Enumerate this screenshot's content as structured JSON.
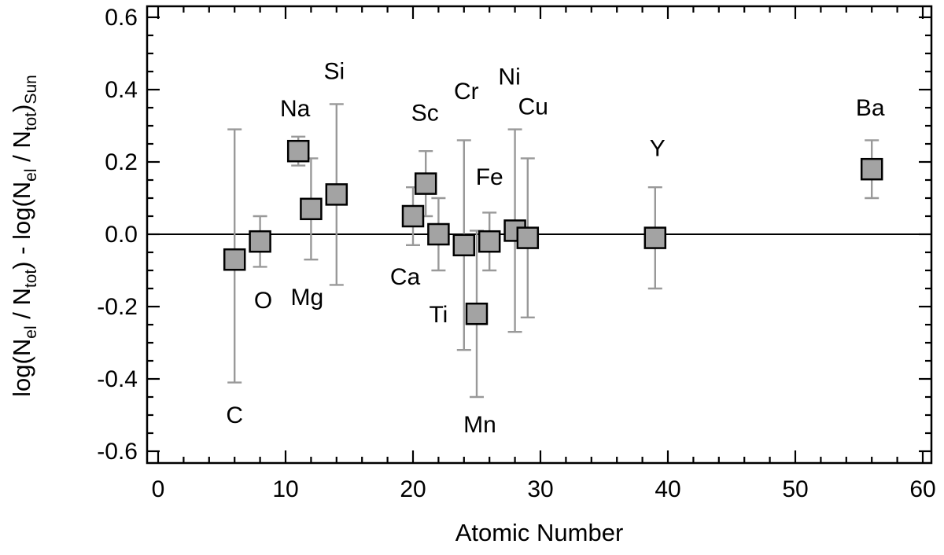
{
  "chart_data": {
    "type": "scatter",
    "title": "",
    "xlabel": "Atomic Number",
    "ylabel_plain": "log(N_el / N_tot) - log(N_el / N_tot)_Sun",
    "ylabel_parts": [
      {
        "t": "log(N"
      },
      {
        "t": "el",
        "sub": true
      },
      {
        "t": " / N"
      },
      {
        "t": "tot",
        "sub": true
      },
      {
        "t": ") - log(N"
      },
      {
        "t": "el",
        "sub": true
      },
      {
        "t": " / N"
      },
      {
        "t": "tot",
        "sub": true
      },
      {
        "t": ")"
      },
      {
        "t": "Sun",
        "sub": true
      }
    ],
    "x_ticks": [
      0,
      10,
      20,
      30,
      40,
      50,
      60
    ],
    "x_tick_labels": [
      "0",
      "10",
      "20",
      "30",
      "40",
      "50",
      "60"
    ],
    "y_ticks": [
      0.6,
      0.4,
      0.2,
      0.0,
      -0.2,
      -0.4,
      -0.6
    ],
    "y_tick_labels": [
      "0.6",
      "0.4",
      "0.2",
      "0.0",
      "-0.2",
      "-0.4",
      "-0.6"
    ],
    "x_minor_step": 2,
    "y_minor_step": 0.05,
    "xlim": [
      0,
      60
    ],
    "ylim": [
      -0.6,
      0.6
    ],
    "grid": false,
    "zero_line": 0.0,
    "legend": "none",
    "points": [
      {
        "element": "C",
        "z": 6,
        "value": -0.07,
        "hi": 0.29,
        "lo": -0.41,
        "label_offset": [
          0,
          198
        ]
      },
      {
        "element": "O",
        "z": 8,
        "value": -0.02,
        "hi": 0.05,
        "lo": -0.09,
        "label_offset": [
          4,
          75
        ]
      },
      {
        "element": "Na",
        "z": 11,
        "value": 0.23,
        "hi": 0.27,
        "lo": 0.19,
        "label_offset": [
          -4,
          -54
        ]
      },
      {
        "element": "Mg",
        "z": 12,
        "value": 0.07,
        "hi": 0.21,
        "lo": -0.07,
        "label_offset": [
          -5,
          112
        ]
      },
      {
        "element": "Si",
        "z": 14,
        "value": 0.11,
        "hi": 0.36,
        "lo": -0.14,
        "label_offset": [
          -3,
          -157
        ]
      },
      {
        "element": "Ca",
        "z": 20,
        "value": 0.05,
        "hi": 0.13,
        "lo": -0.03,
        "label_offset": [
          -10,
          77
        ]
      },
      {
        "element": "Sc",
        "z": 21,
        "value": 0.14,
        "hi": 0.23,
        "lo": 0.05,
        "label_offset": [
          -1,
          -90
        ]
      },
      {
        "element": "Ti",
        "z": 22,
        "value": 0.0,
        "hi": 0.1,
        "lo": -0.1,
        "label_offset": [
          0,
          102
        ]
      },
      {
        "element": "Cr",
        "z": 24,
        "value": -0.03,
        "hi": 0.26,
        "lo": -0.32,
        "label_offset": [
          3,
          -196
        ]
      },
      {
        "element": "Mn",
        "z": 25,
        "value": -0.22,
        "hi": 0.01,
        "lo": -0.45,
        "label_offset": [
          4,
          141
        ]
      },
      {
        "element": "Fe",
        "z": 26,
        "value": -0.02,
        "hi": 0.06,
        "lo": -0.1,
        "label_offset": [
          0,
          -82
        ]
      },
      {
        "element": "Ni",
        "z": 28,
        "value": 0.01,
        "hi": 0.29,
        "lo": -0.27,
        "label_offset": [
          -7,
          -196
        ]
      },
      {
        "element": "Cu",
        "z": 29,
        "value": -0.01,
        "hi": 0.21,
        "lo": -0.23,
        "label_offset": [
          7,
          -167
        ]
      },
      {
        "element": "Y",
        "z": 39,
        "value": -0.01,
        "hi": 0.13,
        "lo": -0.15,
        "label_offset": [
          3,
          -114
        ]
      },
      {
        "element": "Ba",
        "z": 56,
        "value": 0.18,
        "hi": 0.26,
        "lo": 0.1,
        "label_offset": [
          -2,
          -78
        ]
      }
    ],
    "colors": {
      "background": "#ffffff",
      "axis": "#000000",
      "text": "#000000",
      "marker_fill": "#a3a3a3",
      "marker_stroke": "#000000",
      "error_bar": "#999999"
    }
  }
}
